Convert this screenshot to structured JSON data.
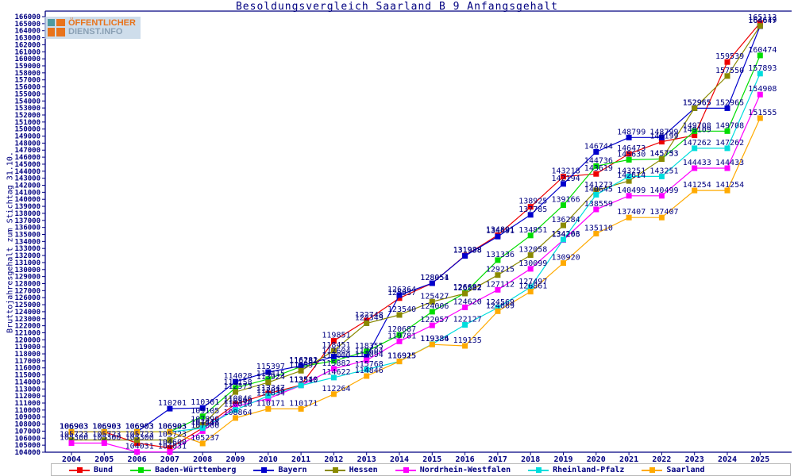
{
  "page": {
    "title": "Besoldungsvergleich Saarland B 9 Anfangsgehalt"
  },
  "logo": {
    "line1": "ÖFFENTLICHER",
    "line2": "DIENST.INFO"
  },
  "colors": {
    "text": "#000080",
    "axis": "#000080",
    "legend_border": "#b8b8b8"
  },
  "chart_data": {
    "type": "line",
    "title": "Besoldungsvergleich Saarland B 9 Anfangsgehalt",
    "ylabel": "Bruttojahresgehalt zum Stichtag 31.10.",
    "ylim": [
      104000,
      166000
    ],
    "y_tick_step": 1000,
    "grid": false,
    "legend_position": "bottom",
    "point_labels": true,
    "years": [
      2004,
      2005,
      2006,
      2007,
      2008,
      2009,
      2010,
      2011,
      2012,
      2013,
      2014,
      2015,
      2016,
      2017,
      2018,
      2019,
      2020,
      2021,
      2022,
      2023,
      2024,
      2025
    ],
    "series": [
      {
        "name": "Bund",
        "color": "#ee0000",
        "values": [
          106903,
          106903,
          105300,
          104600,
          107448,
          110846,
          112347,
          113540,
          119851,
          122748,
          125937,
          128054,
          131988,
          134891,
          138925,
          143218,
          143619,
          146473,
          148199,
          149109,
          159539,
          165113
        ]
      },
      {
        "name": "Baden-Württemberg",
        "color": "#00dd00",
        "values": [
          106903,
          106903,
          106903,
          106903,
          109105,
          113158,
          114415,
          116181,
          117000,
          118355,
          120687,
          124006,
          126682,
          131336,
          134851,
          139166,
          144736,
          145630,
          145753,
          149708,
          149708,
          160474
        ]
      },
      {
        "name": "Bayern",
        "color": "#0000cc",
        "values": [
          106903,
          106903,
          106903,
          110201,
          110301,
          114028,
          115397,
          116282,
          117604,
          117604,
          126364,
          128051,
          131938,
          134691,
          137785,
          142194,
          146744,
          148799,
          148799,
          152965,
          152965,
          164647
        ]
      },
      {
        "name": "Hessen",
        "color": "#8a8a00",
        "values": [
          105723,
          105723,
          105723,
          105723,
          107890,
          112573,
          113924,
          115597,
          118451,
          122349,
          123540,
          125427,
          126582,
          129215,
          132058,
          136284,
          141273,
          142614,
          145733,
          152965,
          157550,
          164679
        ]
      },
      {
        "name": "Nordrhein-Westfalen",
        "color": "#ff00ff",
        "values": [
          105300,
          105300,
          104031,
          104031,
          107000,
          110500,
          111634,
          113510,
          115882,
          117094,
          119781,
          122057,
          124620,
          127112,
          130099,
          134206,
          138559,
          140499,
          140499,
          144433,
          144433,
          154908
        ]
      },
      {
        "name": "Rheinland-Pfalz",
        "color": "#00dddd",
        "values": [
          106903,
          106903,
          106903,
          106903,
          107418,
          110016,
          112016,
          113510,
          114622,
          115768,
          116915,
          119384,
          122127,
          124569,
          127497,
          134263,
          140645,
          143251,
          143251,
          147262,
          147262,
          157893
        ]
      },
      {
        "name": "Saarland",
        "color": "#ffaa00",
        "values": [
          106903,
          106903,
          106903,
          106903,
          105237,
          108864,
          110171,
          110171,
          112264,
          114846,
          116925,
          119336,
          119135,
          124069,
          126861,
          130920,
          135110,
          137407,
          137407,
          141254,
          141254,
          151555
        ]
      }
    ]
  }
}
